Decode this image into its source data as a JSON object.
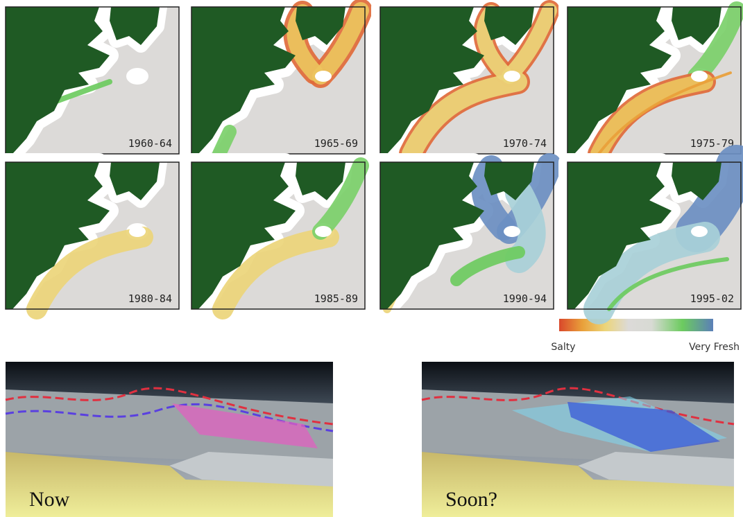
{
  "panels": [
    {
      "label": "1960-64"
    },
    {
      "label": "1965-69"
    },
    {
      "label": "1970-74"
    },
    {
      "label": "1975-79"
    },
    {
      "label": "1980-84"
    },
    {
      "label": "1985-89"
    },
    {
      "label": "1990-94"
    },
    {
      "label": "1995-02"
    }
  ],
  "legend": {
    "min_label": "Salty",
    "max_label": "Very Fresh"
  },
  "renders": [
    {
      "caption": "Now"
    },
    {
      "caption": "Soon?"
    }
  ]
}
